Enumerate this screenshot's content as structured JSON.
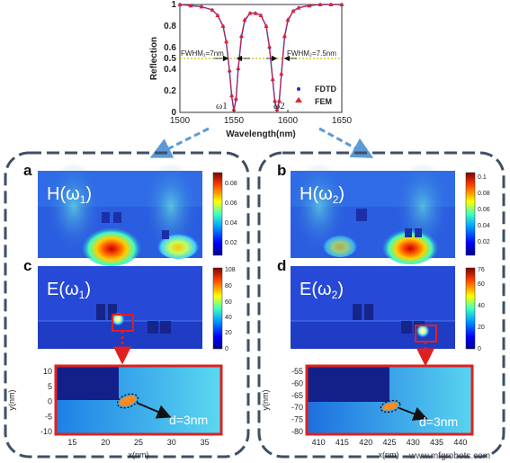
{
  "chart_data": {
    "type": "line",
    "xlabel": "Wavelength(nm)",
    "ylabel": "Reflection",
    "xlim": [
      1500,
      1650
    ],
    "ylim": [
      0,
      1
    ],
    "xticks": [
      "1500",
      "1550",
      "1600",
      "1650"
    ],
    "yticks": [
      "0",
      "0.2",
      "0.4",
      "0.5",
      "0.6",
      "0.8",
      "1"
    ],
    "series": [
      {
        "name": "FDTD",
        "color": "#1a2fd6",
        "x": [
          1500,
          1510,
          1520,
          1530,
          1535,
          1540,
          1543,
          1546,
          1548,
          1550,
          1552,
          1554,
          1557,
          1560,
          1565,
          1570,
          1575,
          1580,
          1583,
          1586,
          1588,
          1590,
          1592,
          1594,
          1597,
          1600,
          1605,
          1610,
          1620,
          1630,
          1640,
          1650
        ],
        "y": [
          1.0,
          0.99,
          0.98,
          0.95,
          0.9,
          0.8,
          0.65,
          0.38,
          0.15,
          0.02,
          0.12,
          0.4,
          0.7,
          0.85,
          0.92,
          0.92,
          0.9,
          0.8,
          0.6,
          0.3,
          0.1,
          0.02,
          0.1,
          0.35,
          0.7,
          0.85,
          0.94,
          0.97,
          0.99,
          1.0,
          1.0,
          1.0
        ]
      },
      {
        "name": "FEM",
        "color": "#e8202a",
        "x": [
          1500,
          1510,
          1520,
          1530,
          1535,
          1540,
          1543,
          1546,
          1548,
          1550,
          1552,
          1554,
          1557,
          1560,
          1565,
          1570,
          1575,
          1580,
          1583,
          1586,
          1588,
          1590,
          1592,
          1594,
          1597,
          1600,
          1605,
          1610,
          1620,
          1630,
          1640,
          1650
        ],
        "y": [
          1.0,
          0.99,
          0.98,
          0.95,
          0.9,
          0.8,
          0.66,
          0.39,
          0.16,
          0.03,
          0.13,
          0.41,
          0.71,
          0.86,
          0.92,
          0.92,
          0.9,
          0.8,
          0.61,
          0.31,
          0.11,
          0.03,
          0.11,
          0.36,
          0.71,
          0.86,
          0.94,
          0.97,
          0.99,
          1.0,
          1.0,
          1.0
        ]
      }
    ],
    "annotations": {
      "fwhm1": "FWHM₁=7nm",
      "fwhm2": "FWHM₂=7.5nm",
      "w1": "ω1",
      "w2": "ω2"
    }
  },
  "panels": {
    "a": {
      "label": "a",
      "field": "H(ω",
      "sub": "1",
      "ticks": [
        "0.08",
        "0.06",
        "0.04",
        "0.02"
      ]
    },
    "b": {
      "label": "b",
      "field": "H(ω",
      "sub": "2",
      "ticks": [
        "0.1",
        "0.08",
        "0.06",
        "0.04",
        "0.02"
      ]
    },
    "c": {
      "label": "c",
      "field": "E(ω",
      "sub": "1",
      "ticks": [
        "108",
        "80",
        "60",
        "40",
        "20",
        "0"
      ]
    },
    "d": {
      "label": "d",
      "field": "E(ω",
      "sub": "2",
      "ticks": [
        "76",
        "60",
        "40",
        "20",
        "0"
      ]
    }
  },
  "zoom_left": {
    "xlabel": "x(nm)",
    "ylabel": "y(nm)",
    "xticks": [
      "15",
      "20",
      "25",
      "30",
      "35"
    ],
    "yticks": [
      "10",
      "5",
      "0",
      "-5",
      "-10"
    ],
    "gap": "d=3nm"
  },
  "zoom_right": {
    "xlabel": "x(nm)",
    "ylabel": "y(nm)",
    "xticks": [
      "410",
      "415",
      "420",
      "425",
      "430",
      "435",
      "440"
    ],
    "yticks": [
      "-55",
      "-60",
      "-65",
      "-70",
      "-75",
      "-80"
    ],
    "gap": "d=3nm"
  },
  "watermark": "www.mfgrobots.com",
  "colors": {
    "frame": "#3e4f66",
    "arrow": "#5b9ad5",
    "red": "#e02020",
    "field_bg": "#2b4de0",
    "threshold": "#c8c000"
  }
}
